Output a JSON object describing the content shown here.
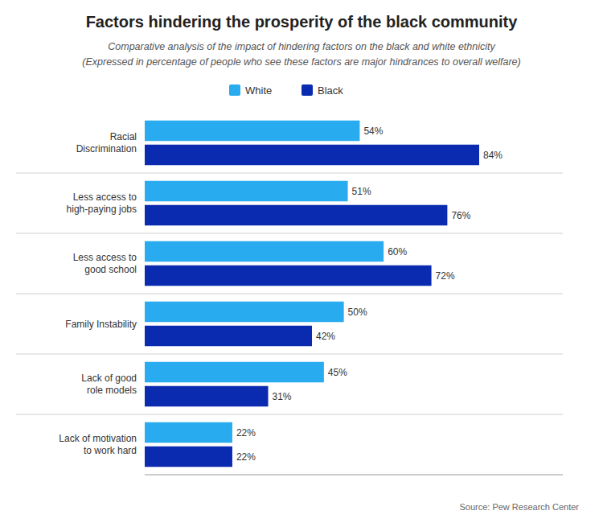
{
  "chart_data": {
    "type": "bar",
    "orientation": "horizontal",
    "title": "Factors hindering the prosperity of the black community",
    "subtitle": [
      "Comparative analysis of the impact of hindering factors on the black and white ethnicity",
      "(Expressed in percentage of people who see these factors are major hindrances to overall welfare)"
    ],
    "source": "Source: Pew Research Center",
    "categories": [
      "Racial\nDiscrimination",
      "Less access to\nhigh-paying jobs",
      "Less access to\ngood school",
      "Family Instability",
      "Lack of good\nrole models",
      "Lack of motivation\nto work hard"
    ],
    "series": [
      {
        "name": "White",
        "color": "#29ABEF",
        "values": [
          54,
          51,
          60,
          50,
          45,
          22
        ],
        "value_labels": [
          "54%",
          "51%",
          "60%",
          "50%",
          "45%",
          "22%"
        ]
      },
      {
        "name": "Black",
        "color": "#0A2BB0",
        "values": [
          84,
          76,
          72,
          42,
          31,
          22
        ],
        "value_labels": [
          "84%",
          "76%",
          "72%",
          "42%",
          "31%",
          "22%"
        ]
      }
    ],
    "xlim": [
      0,
      105
    ],
    "grid": false,
    "legend": "top",
    "data_labels": true,
    "tick_labels": "y"
  }
}
